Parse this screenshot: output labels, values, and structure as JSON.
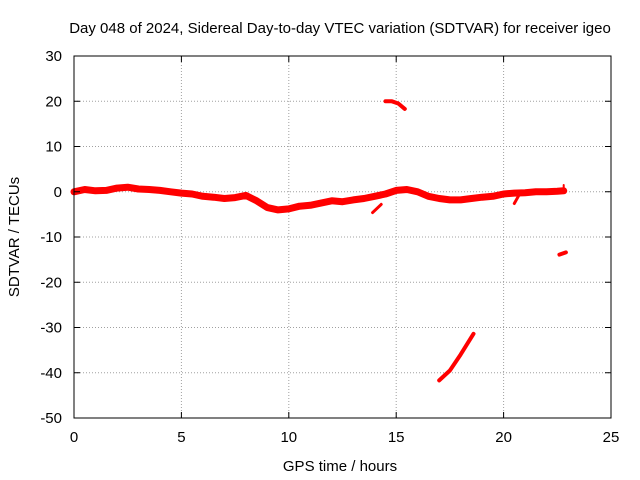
{
  "chart_data": {
    "type": "scatter",
    "title": "Day 048 of 2024, Sidereal Day-to-day VTEC variation (SDTVAR) for receiver igeo",
    "xlabel": "GPS time / hours",
    "ylabel": "SDTVAR / TECUs",
    "xlim": [
      0,
      25
    ],
    "ylim": [
      -50,
      30
    ],
    "xticks": [
      0,
      5,
      10,
      15,
      20,
      25
    ],
    "yticks": [
      30,
      20,
      10,
      0,
      -10,
      -20,
      -30,
      -40,
      -50
    ],
    "grid": true,
    "color": "#ff0000",
    "series": [
      {
        "name": "main arc",
        "x": [
          0,
          0.5,
          1.0,
          1.5,
          2.0,
          2.5,
          3.0,
          3.5,
          4.0,
          4.5,
          5.0,
          5.5,
          6.0,
          6.5,
          7.0,
          7.5,
          8.0,
          8.5,
          9.0,
          9.5,
          10.0,
          10.5,
          11.0,
          11.5,
          12.0,
          12.5,
          13.0,
          13.5,
          14.0,
          14.5,
          15.0,
          15.5,
          16.0,
          16.5,
          17.0,
          17.5,
          18.0,
          18.5,
          19.0,
          19.5,
          20.0,
          20.5,
          21.0,
          21.5,
          22.0,
          22.5,
          22.8
        ],
        "y": [
          0.0,
          0.5,
          0.2,
          0.3,
          0.8,
          1.0,
          0.6,
          0.5,
          0.3,
          0.0,
          -0.3,
          -0.5,
          -1.0,
          -1.2,
          -1.5,
          -1.3,
          -0.8,
          -2.0,
          -3.5,
          -4.0,
          -3.8,
          -3.2,
          -3.0,
          -2.5,
          -2.0,
          -2.2,
          -1.8,
          -1.5,
          -1.0,
          -0.5,
          0.3,
          0.5,
          0.0,
          -1.0,
          -1.5,
          -1.8,
          -1.8,
          -1.5,
          -1.2,
          -1.0,
          -0.5,
          -0.3,
          -0.2,
          0.0,
          0.0,
          0.1,
          0.2
        ],
        "width": 7
      },
      {
        "name": "arc near 14.5-15.5 h",
        "x": [
          14.5,
          14.8,
          15.1,
          15.4
        ],
        "y": [
          20.0,
          20.0,
          19.5,
          18.3
        ],
        "width": 4
      },
      {
        "name": "short arc near 14.2 h",
        "x": [
          13.9,
          14.3
        ],
        "y": [
          -4.6,
          -2.8
        ],
        "width": 3
      },
      {
        "name": "arc near 17-18.6 h",
        "x": [
          17.0,
          17.5,
          18.0,
          18.6
        ],
        "y": [
          -41.7,
          -39.5,
          -36.0,
          -31.4
        ],
        "width": 4
      },
      {
        "name": "short arc near 20.6 h",
        "x": [
          20.5,
          20.7
        ],
        "y": [
          -2.6,
          -0.9
        ],
        "width": 3
      },
      {
        "name": "arc near 22.6-22.9 h",
        "x": [
          22.6,
          22.9
        ],
        "y": [
          -13.9,
          -13.4
        ],
        "width": 4
      },
      {
        "name": "end spike near 22.8 h",
        "x": [
          22.8,
          22.8
        ],
        "y": [
          0.0,
          1.5
        ],
        "width": 2
      }
    ]
  }
}
